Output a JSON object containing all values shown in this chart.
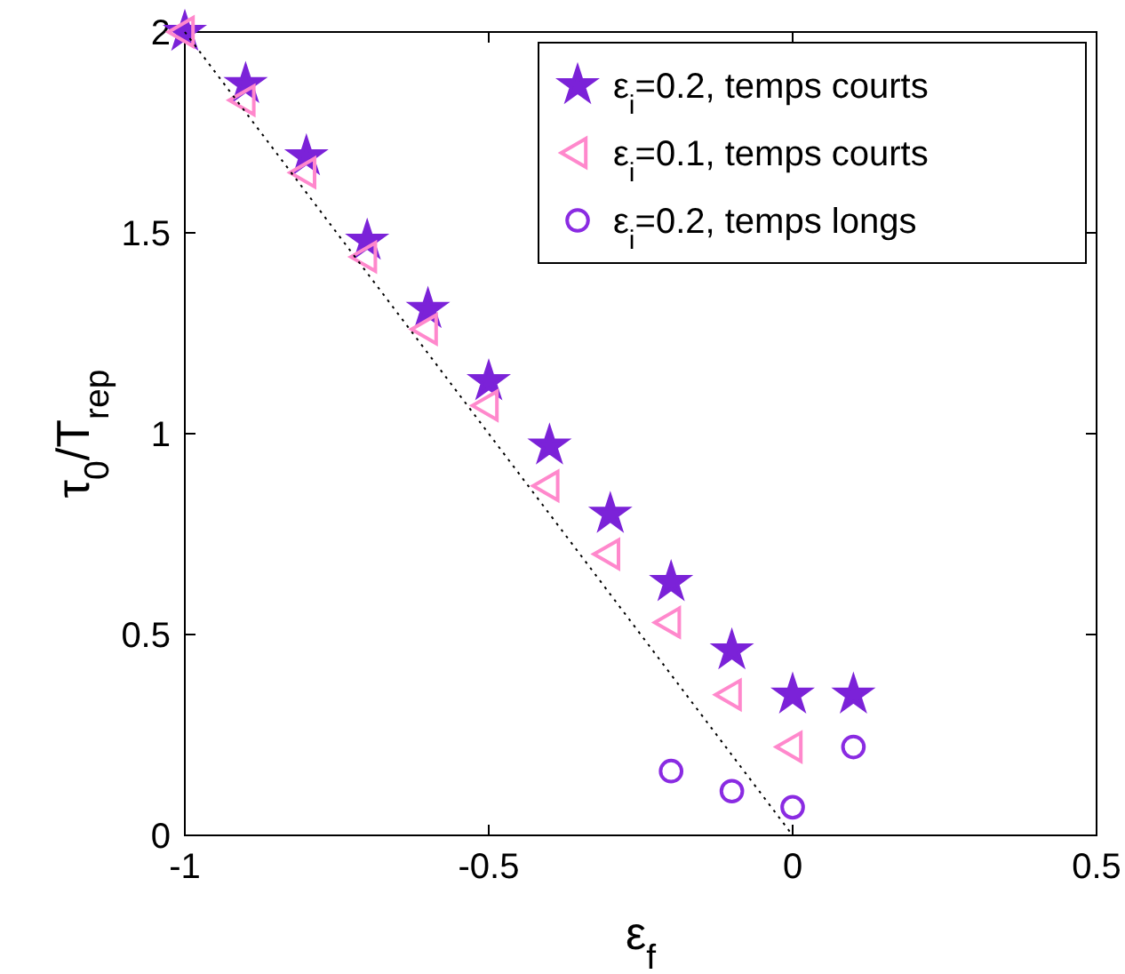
{
  "chart_data": {
    "type": "scatter",
    "xlabel": "ε$_{f}$",
    "ylabel": "τ$_{0}$/T$_{rep}$",
    "xlim": [
      -1,
      0.5
    ],
    "ylim": [
      0,
      2
    ],
    "xticks": [
      -1,
      -0.5,
      0,
      0.5
    ],
    "yticks": [
      0,
      0.5,
      1,
      1.5,
      2
    ],
    "grid": false,
    "legend": "top right",
    "series": [
      {
        "name": "ε$_{i}$=0.2, temps courts",
        "color": "#7b22d8",
        "marker": "star",
        "x": [
          -1,
          -0.9,
          -0.8,
          -0.7,
          -0.6,
          -0.5,
          -0.4,
          -0.3,
          -0.2,
          -0.1,
          0,
          0.1
        ],
        "values": [
          2,
          1.87,
          1.69,
          1.48,
          1.31,
          1.13,
          0.97,
          0.8,
          0.63,
          0.46,
          0.35,
          0.35
        ]
      },
      {
        "name": "ε$_{i}$=0.1, temps courts",
        "color": "#ff88cc",
        "marker": "triangle",
        "x": [
          -1,
          -0.9,
          -0.8,
          -0.7,
          -0.6,
          -0.5,
          -0.4,
          -0.3,
          -0.2,
          -0.1,
          0
        ],
        "values": [
          2,
          1.83,
          1.65,
          1.44,
          1.26,
          1.07,
          0.87,
          0.7,
          0.53,
          0.35,
          0.22
        ]
      },
      {
        "name": "ε$_{i}$=0.2, temps longs",
        "color": "#8a2be2",
        "marker": "circle",
        "x": [
          -0.2,
          -0.1,
          0,
          0.1
        ],
        "values": [
          0.16,
          0.11,
          0.07,
          0.22
        ]
      },
      {
        "type": "line",
        "color": "#000000",
        "line_style": "dotted",
        "marker": "none",
        "x": [
          -1,
          0
        ],
        "values": [
          2,
          0
        ]
      }
    ]
  }
}
